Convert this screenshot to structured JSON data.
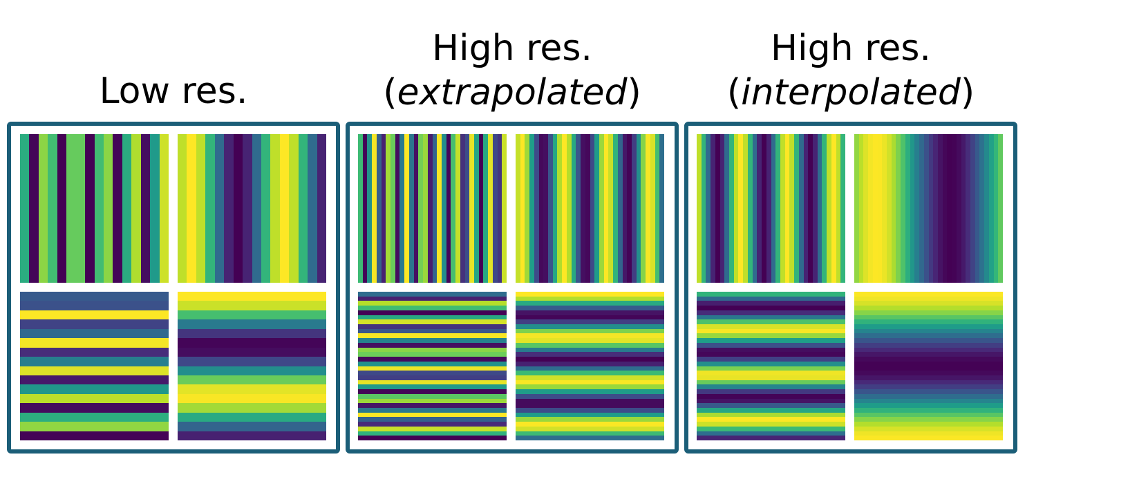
{
  "panels": [
    {
      "title_line1": "",
      "title_line2_pre": "Low res.",
      "title_line2_em": "",
      "title_line2_post": ""
    },
    {
      "title_line1": "High res.",
      "title_line2_pre": "(",
      "title_line2_em": "extrapolated",
      "title_line2_post": ")"
    },
    {
      "title_line1": "High res.",
      "title_line2_pre": "(",
      "title_line2_em": "interpolated",
      "title_line2_post": ")"
    }
  ],
  "frame_color": "#1b5e78",
  "colormap": "viridis",
  "tiles": [
    {
      "panel": 0,
      "orientation": "vertical",
      "stripes": 16,
      "frequency": 5.2,
      "phase": 0.3
    },
    {
      "panel": 0,
      "orientation": "vertical",
      "stripes": 16,
      "frequency": 1.6,
      "phase": 0.1
    },
    {
      "panel": 0,
      "orientation": "horizontal",
      "stripes": 16,
      "frequency": 5.5,
      "phase": 0.4
    },
    {
      "panel": 0,
      "orientation": "horizontal",
      "stripes": 16,
      "frequency": 1.5,
      "phase": 0.2
    },
    {
      "panel": 1,
      "orientation": "vertical",
      "stripes": 32,
      "frequency": 9.0,
      "phase": 0.3
    },
    {
      "panel": 1,
      "orientation": "vertical",
      "stripes": 32,
      "frequency": 3.5,
      "phase": 0.1
    },
    {
      "panel": 1,
      "orientation": "horizontal",
      "stripes": 32,
      "frequency": 9.5,
      "phase": 0.4
    },
    {
      "panel": 1,
      "orientation": "horizontal",
      "stripes": 32,
      "frequency": 3.4,
      "phase": 0.2
    },
    {
      "panel": 2,
      "orientation": "vertical",
      "stripes": 32,
      "frequency": 3.2,
      "phase": 0.3
    },
    {
      "panel": 2,
      "orientation": "vertical",
      "stripes": 32,
      "frequency": 1.0,
      "phase": 0.1
    },
    {
      "panel": 2,
      "orientation": "horizontal",
      "stripes": 32,
      "frequency": 3.3,
      "phase": 0.4
    },
    {
      "panel": 2,
      "orientation": "horizontal",
      "stripes": 32,
      "frequency": 1.0,
      "phase": 0.25
    }
  ]
}
